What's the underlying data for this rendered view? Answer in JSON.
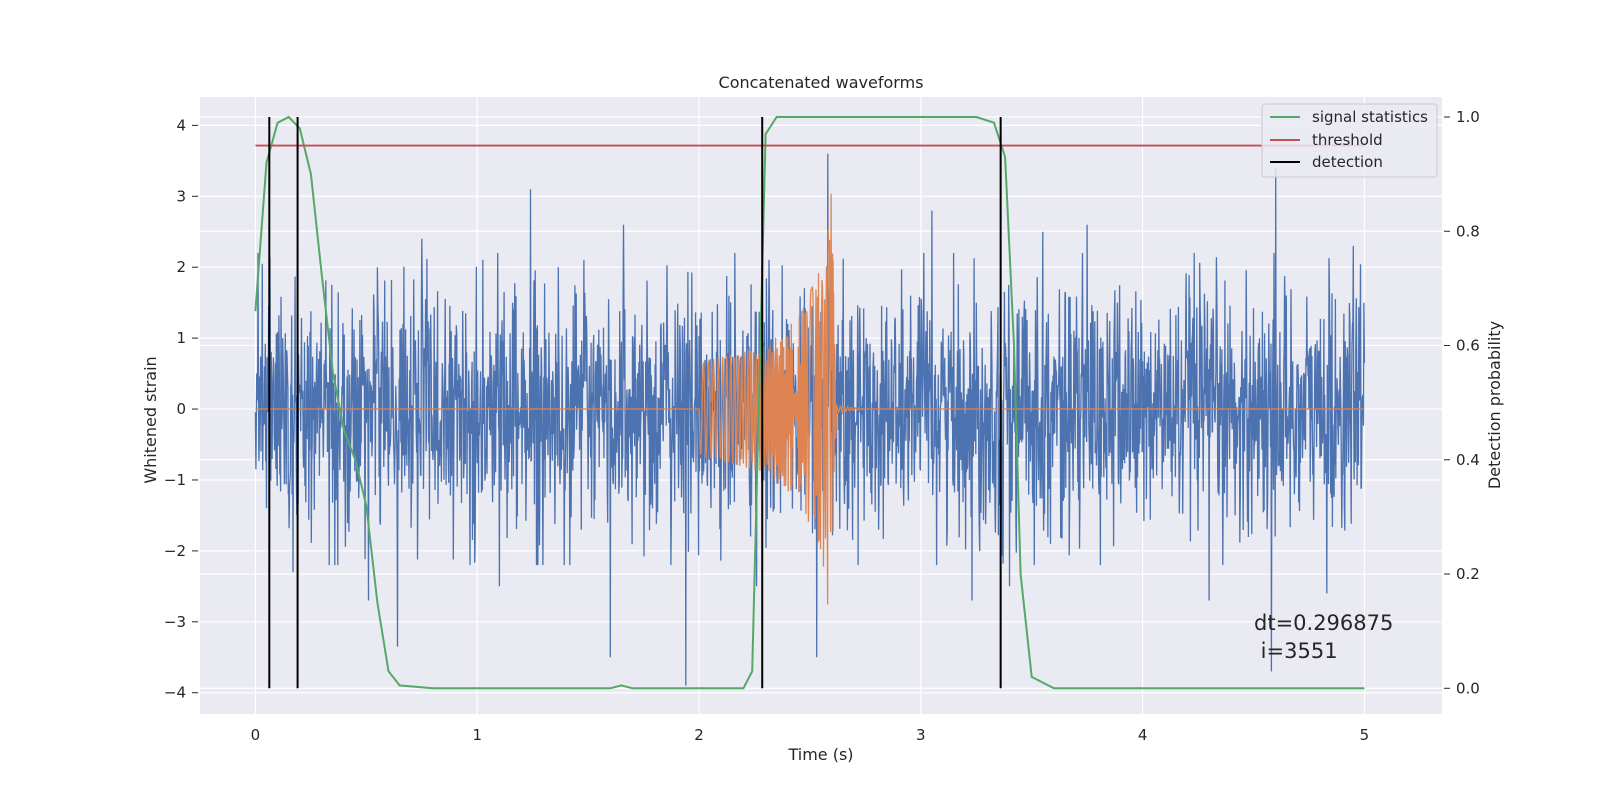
{
  "chart_data": {
    "type": "line",
    "title": "Concatenated waveforms",
    "xlabel": "Time (s)",
    "ylabel": "Whitened strain",
    "y2label": "Detection probability",
    "xlim": [
      -0.25,
      5.35
    ],
    "ylim": [
      -4.3,
      4.4
    ],
    "y2lim": [
      -0.045,
      1.035
    ],
    "xticks": [
      0,
      1,
      2,
      3,
      4,
      5
    ],
    "xtick_labels": [
      "0",
      "1",
      "2",
      "3",
      "4",
      "5"
    ],
    "yticks": [
      -4,
      -3,
      -2,
      -1,
      0,
      1,
      2,
      3,
      4
    ],
    "ytick_labels": [
      "−4",
      "−3",
      "−2",
      "−1",
      "0",
      "1",
      "2",
      "3",
      "4"
    ],
    "y2ticks": [
      0.0,
      0.2,
      0.4,
      0.6,
      0.8,
      1.0
    ],
    "y2tick_labels": [
      "0.0",
      "0.2",
      "0.4",
      "0.6",
      "0.8",
      "1.0"
    ],
    "grid": true,
    "legend_position": "top-right",
    "legend": [
      "signal statistics",
      "threshold",
      "detection"
    ],
    "annotation_lines": [
      "dt=0.296875",
      " i=3551"
    ],
    "colors": {
      "background": "#eaeaf2",
      "grid": "#ffffff",
      "noise": "#4c72b0",
      "template": "#dd8452",
      "statistics": "#55a868",
      "threshold": "#c44e52",
      "detection": "#000000"
    },
    "series": [
      {
        "name": "",
        "description_role": "noisy whitened strain",
        "x_range": [
          0,
          5
        ],
        "noise_std": 0.85,
        "peaks_above": [
          [
            0.03,
            2.05
          ],
          [
            0.19,
            2.8
          ],
          [
            0.55,
            2.0
          ],
          [
            0.75,
            2.4
          ],
          [
            1.1,
            2.7
          ],
          [
            1.24,
            3.1
          ],
          [
            1.48,
            2.1
          ],
          [
            1.66,
            2.6
          ],
          [
            2.58,
            3.6
          ],
          [
            3.05,
            2.8
          ],
          [
            3.55,
            2.5
          ],
          [
            3.75,
            2.6
          ],
          [
            4.6,
            3.4
          ],
          [
            4.95,
            2.3
          ]
        ],
        "peaks_below": [
          [
            0.05,
            -1.4
          ],
          [
            0.17,
            -2.3
          ],
          [
            0.51,
            -2.7
          ],
          [
            0.64,
            -3.35
          ],
          [
            1.1,
            -2.5
          ],
          [
            1.6,
            -3.5
          ],
          [
            1.94,
            -3.9
          ],
          [
            2.26,
            -2.5
          ],
          [
            2.53,
            -3.5
          ],
          [
            3.23,
            -2.7
          ],
          [
            3.4,
            -2.5
          ],
          [
            4.3,
            -2.7
          ],
          [
            4.58,
            -3.7
          ],
          [
            4.83,
            -2.6
          ]
        ]
      },
      {
        "name": "",
        "description_role": "injected waveform",
        "x": [
          0,
          2.0,
          2.0,
          2.3,
          2.45,
          2.55,
          2.59,
          2.62,
          2.75,
          5.0
        ],
        "amplitude": [
          0,
          0,
          0.65,
          0.9,
          1.3,
          2.0,
          3.7,
          0.05,
          0.0,
          0
        ]
      },
      {
        "name": "signal statistics",
        "axis": "right",
        "x": [
          0.0,
          0.05,
          0.1,
          0.15,
          0.2,
          0.25,
          0.3,
          0.35,
          0.4,
          0.45,
          0.5,
          0.55,
          0.6,
          0.65,
          0.8,
          1.6,
          1.65,
          1.7,
          2.0,
          2.2,
          2.24,
          2.27,
          2.3,
          2.35,
          2.4,
          3.25,
          3.33,
          3.38,
          3.42,
          3.45,
          3.5,
          3.6,
          5.0
        ],
        "values": [
          0.66,
          0.92,
          0.99,
          1.0,
          0.98,
          0.9,
          0.72,
          0.55,
          0.45,
          0.4,
          0.32,
          0.15,
          0.03,
          0.005,
          0.0,
          0.0,
          0.005,
          0.0,
          0.0,
          0.0,
          0.03,
          0.5,
          0.97,
          1.0,
          1.0,
          1.0,
          0.99,
          0.93,
          0.6,
          0.2,
          0.02,
          0.0,
          0.0
        ]
      },
      {
        "name": "threshold",
        "axis": "right",
        "x": [
          0,
          5
        ],
        "values": [
          0.95,
          0.95
        ]
      },
      {
        "name": "detection",
        "axis": "right",
        "vertical_lines": [
          0.0625,
          0.19,
          2.285,
          3.36
        ],
        "y_range": [
          0.0,
          1.0
        ]
      }
    ]
  }
}
